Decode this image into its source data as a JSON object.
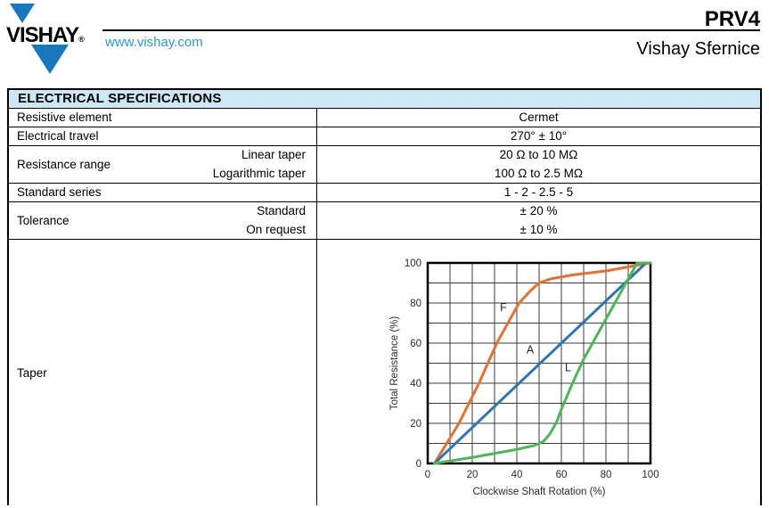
{
  "header": {
    "brand": "VISHAY",
    "registered": "®",
    "website": "www.vishay.com",
    "part_number": "PRV4",
    "division": "Vishay Sfernice"
  },
  "colors": {
    "brand_blue": "#1878be",
    "link_blue": "#2b9ad3",
    "table_header_bg": "#cde8f5",
    "grid_line": "#3c3c3c",
    "tick_text": "#2e2a26"
  },
  "table": {
    "title": "ELECTRICAL SPECIFICATIONS",
    "rows": [
      {
        "label": "Resistive element",
        "value": "Cermet"
      },
      {
        "label": "Electrical travel",
        "value": "270° ± 10°"
      },
      {
        "label": "Resistance range",
        "sublabels": [
          "Linear taper",
          "Logarithmic taper"
        ],
        "values": [
          "20 Ω to 10 MΩ",
          "100 Ω to 2.5 MΩ"
        ]
      },
      {
        "label": "Standard series",
        "value": "1 - 2 - 2.5 - 5"
      },
      {
        "label": "Tolerance",
        "sublabels": [
          "Standard",
          "On request"
        ],
        "values": [
          "± 20 %",
          "± 10 %"
        ]
      },
      {
        "label": "Taper"
      }
    ]
  },
  "chart_data": {
    "type": "line",
    "xlabel": "Clockwise Shaft Rotation (%)",
    "ylabel": "Total Resistance (%)",
    "xlim": [
      0,
      100
    ],
    "ylim": [
      0,
      100
    ],
    "grid": true,
    "grid_step": 10,
    "tick_label_step": 20,
    "series": [
      {
        "name": "F",
        "color": "#e8702e",
        "label_pos": [
          34,
          76
        ],
        "points": [
          [
            3,
            0
          ],
          [
            14,
            20
          ],
          [
            23,
            40
          ],
          [
            31,
            60
          ],
          [
            41,
            80
          ],
          [
            46,
            86
          ],
          [
            50,
            90
          ],
          [
            55,
            92
          ],
          [
            65,
            94
          ],
          [
            80,
            96
          ],
          [
            90,
            98
          ],
          [
            100,
            100
          ]
        ]
      },
      {
        "name": "A",
        "color": "#2e75b5",
        "label_pos": [
          46,
          55
        ],
        "points": [
          [
            3,
            0
          ],
          [
            98,
            100
          ],
          [
            100,
            100
          ]
        ]
      },
      {
        "name": "L",
        "color": "#4db758",
        "label_pos": [
          63,
          46
        ],
        "points": [
          [
            3,
            0
          ],
          [
            20,
            3
          ],
          [
            30,
            5
          ],
          [
            40,
            7
          ],
          [
            48,
            9
          ],
          [
            52,
            11
          ],
          [
            55,
            15
          ],
          [
            58,
            21
          ],
          [
            60,
            27
          ],
          [
            65,
            40
          ],
          [
            70,
            52
          ],
          [
            75,
            62
          ],
          [
            80,
            72
          ],
          [
            85,
            82
          ],
          [
            90,
            92
          ],
          [
            94,
            100
          ],
          [
            100,
            100
          ]
        ]
      }
    ]
  }
}
